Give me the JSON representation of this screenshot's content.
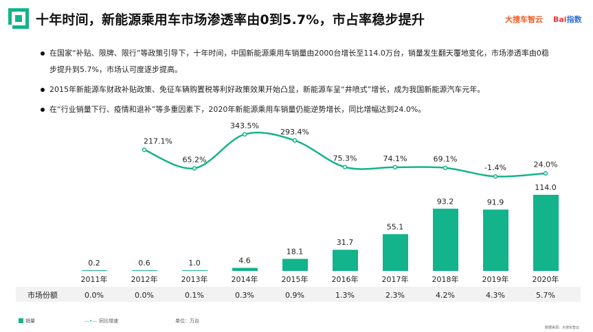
{
  "header": {
    "title": "十年时间，新能源乘用车市场渗透率由0到5.7%，市占率稳步提升",
    "brand_left": "大搜车智云",
    "brand_right_a": "Bai",
    "brand_right_b": "指数"
  },
  "bullets": [
    "在国家“补贴、限牌、限行”等政策引导下，十年时间，中国新能源乘用车销量由2000台增长至114.0万台，销量发生翻天覆地变化，市场渗透率由0稳步提升到5.7%，市场认可度逐步提高。",
    "2015年新能源车财政补贴政策、免征车辆购置税等利好政策效果开始凸显，新能源车呈“井喷式”增长，成为我国新能源汽车元年。",
    "在“行业销量下行、疫情和退补”等多重因素下，2020年新能源乘用车销量仍能逆势增长，同比增幅达到24.0%。"
  ],
  "chart_data": {
    "type": "bar+line",
    "categories": [
      "2011年",
      "2012年",
      "2013年",
      "2014年",
      "2015年",
      "2016年",
      "2017年",
      "2018年",
      "2019年",
      "2020年"
    ],
    "series": [
      {
        "name": "销量",
        "type": "bar",
        "values": [
          0.2,
          0.6,
          1.0,
          4.6,
          18.1,
          31.7,
          55.1,
          93.2,
          91.9,
          114.0
        ],
        "labels": [
          "0.2",
          "0.6",
          "1.0",
          "4.6",
          "18.1",
          "31.7",
          "55.1",
          "93.2",
          "91.9",
          "114.0"
        ]
      },
      {
        "name": "同比增速",
        "type": "line",
        "values": [
          null,
          217.1,
          65.2,
          343.5,
          293.4,
          75.3,
          74.1,
          69.1,
          -1.4,
          24.0
        ],
        "labels": [
          "",
          "217.1%",
          "65.2%",
          "343.5%",
          "293.4%",
          "75.3%",
          "74.1%",
          "69.1%",
          "-1.4%",
          "24.0%"
        ]
      }
    ],
    "table": {
      "label": "市场份额",
      "values": [
        "0.0%",
        "0.0%",
        "0.1%",
        "0.3%",
        "0.9%",
        "1.3%",
        "2.3%",
        "4.2%",
        "4.3%",
        "5.7%"
      ]
    },
    "unit": "单位：万台",
    "colors": {
      "bar": "#13b38b",
      "line": "#13b38b"
    },
    "grid": false,
    "legend_position": "bottom-left"
  },
  "source": "数据来源：大搜车智云"
}
